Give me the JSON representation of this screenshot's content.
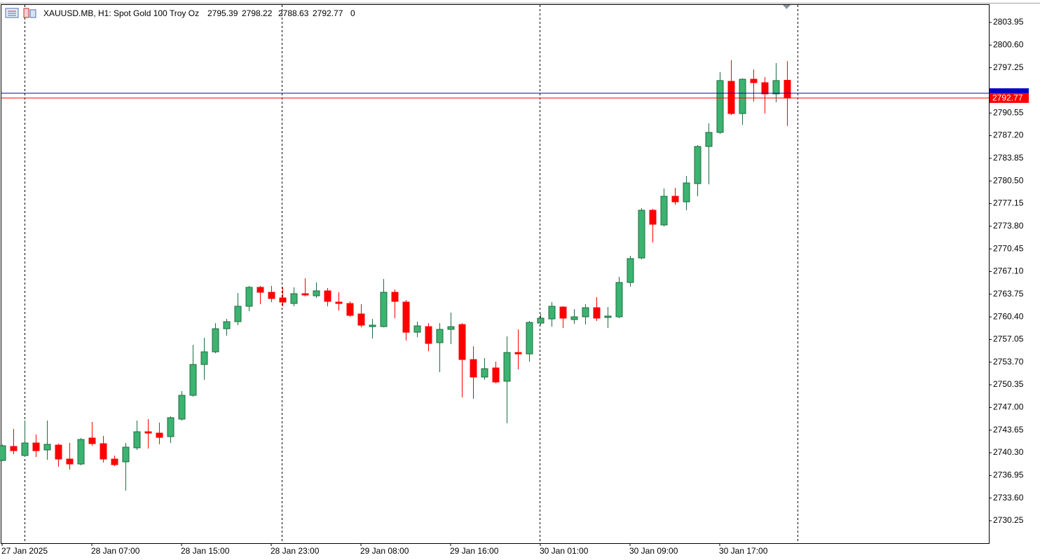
{
  "chart_data": {
    "type": "candlestick",
    "title": "XAUUSD.MB, H1:",
    "description": "Spot Gold 100 Troy Oz",
    "header_value": 0,
    "categories": [
      "27 Jan 2025",
      null,
      null,
      null,
      null,
      null,
      null,
      null,
      "28 Jan 07:00",
      null,
      null,
      null,
      null,
      null,
      null,
      null,
      "28 Jan 15:00",
      null,
      null,
      null,
      null,
      null,
      null,
      null,
      "28 Jan 23:00",
      null,
      null,
      null,
      null,
      null,
      null,
      null,
      "29 Jan 08:00",
      null,
      null,
      null,
      null,
      null,
      null,
      null,
      "29 Jan 16:00",
      null,
      null,
      null,
      null,
      null,
      null,
      null,
      "30 Jan 01:00",
      null,
      null,
      null,
      null,
      null,
      null,
      null,
      "30 Jan 09:00",
      null,
      null,
      null,
      null,
      null,
      null,
      null,
      "30 Jan 17:00",
      null,
      null,
      null,
      null,
      null,
      null
    ],
    "open": [
      2739.16,
      2741.24,
      2739.89,
      2741.75,
      2740.72,
      2741.44,
      2739.37,
      2738.64,
      2742.48,
      2741.65,
      2739.37,
      2738.96,
      2741.03,
      2743.41,
      2743.21,
      2742.69,
      2745.28,
      2748.8,
      2753.36,
      2755.23,
      2758.65,
      2759.69,
      2761.97,
      2764.77,
      2764.04,
      2763.21,
      2762.38,
      2763.83,
      2763.52,
      2764.25,
      2762.59,
      2762.38,
      2760.83,
      2758.96,
      2758.96,
      2764.04,
      2762.59,
      2758.13,
      2758.96,
      2756.58,
      2758.55,
      2759.27,
      2754.09,
      2751.5,
      2752.85,
      2750.88,
      2755.13,
      2754.92,
      2759.48,
      2760.1,
      2761.86,
      2760.0,
      2760.41,
      2761.76,
      2760.31,
      2760.41,
      2765.49,
      2769.12,
      2776.17,
      2773.99,
      2778.24,
      2777.41,
      2780.11,
      2785.6,
      2787.68,
      2795.24,
      2790.47,
      2795.55,
      2795.04,
      2793.38,
      2795.39
    ],
    "high": [
      2741.55,
      2743.83,
      2745.07,
      2743.0,
      2745.07,
      2741.65,
      2741.75,
      2742.48,
      2744.86,
      2742.79,
      2739.89,
      2741.75,
      2745.07,
      2745.28,
      2744.76,
      2745.69,
      2749.43,
      2756.27,
      2757.3,
      2759.48,
      2760.1,
      2763.94,
      2764.97,
      2764.97,
      2764.97,
      2764.77,
      2764.77,
      2766.11,
      2765.49,
      2764.66,
      2764.04,
      2762.69,
      2762.28,
      2760.1,
      2766.01,
      2764.46,
      2762.9,
      2759.69,
      2759.48,
      2759.48,
      2761.04,
      2759.48,
      2756.06,
      2754.3,
      2753.78,
      2757.51,
      2758.55,
      2759.79,
      2760.83,
      2762.59,
      2761.97,
      2761.55,
      2762.28,
      2763.32,
      2761.86,
      2766.32,
      2769.43,
      2776.48,
      2776.38,
      2779.38,
      2779.49,
      2781.25,
      2785.81,
      2789.02,
      2796.59,
      2798.35,
      2795.66,
      2797.0,
      2795.86,
      2797.94,
      2798.22
    ],
    "low": [
      2739.06,
      2740.1,
      2739.68,
      2739.68,
      2739.27,
      2738.23,
      2737.81,
      2738.44,
      2741.34,
      2738.85,
      2738.33,
      2734.71,
      2740.72,
      2740.93,
      2741.55,
      2741.75,
      2745.07,
      2748.6,
      2751.08,
      2755.02,
      2757.61,
      2759.17,
      2761.24,
      2762.28,
      2762.59,
      2761.97,
      2761.97,
      2763.42,
      2763.21,
      2761.97,
      2761.35,
      2760.41,
      2758.86,
      2757.2,
      2758.86,
      2760.21,
      2756.89,
      2757.41,
      2755.33,
      2752.22,
      2756.37,
      2748.49,
      2748.28,
      2751.08,
      2750.57,
      2744.66,
      2752.64,
      2753.78,
      2759.17,
      2758.96,
      2758.75,
      2759.38,
      2759.27,
      2759.79,
      2758.75,
      2760.21,
      2764.87,
      2768.91,
      2771.4,
      2773.79,
      2777.0,
      2776.17,
      2778.24,
      2780.0,
      2787.47,
      2790.27,
      2788.82,
      2792.24,
      2790.47,
      2792.13,
      2788.63
    ],
    "close": [
      2741.34,
      2740.61,
      2741.75,
      2740.61,
      2741.55,
      2739.37,
      2738.64,
      2742.27,
      2741.65,
      2739.37,
      2738.54,
      2741.13,
      2743.41,
      2743.21,
      2742.58,
      2745.49,
      2748.8,
      2753.36,
      2755.23,
      2758.65,
      2759.69,
      2761.97,
      2764.77,
      2764.04,
      2763.11,
      2762.59,
      2763.83,
      2763.63,
      2764.25,
      2762.69,
      2762.38,
      2760.62,
      2759.17,
      2759.17,
      2764.04,
      2762.69,
      2758.13,
      2759.07,
      2756.47,
      2758.55,
      2758.96,
      2754.09,
      2751.5,
      2752.74,
      2750.77,
      2755.13,
      2754.92,
      2759.58,
      2760.21,
      2761.97,
      2760.21,
      2760.41,
      2761.76,
      2760.21,
      2760.52,
      2765.49,
      2769.02,
      2776.17,
      2774.1,
      2778.24,
      2777.41,
      2780.21,
      2785.6,
      2787.68,
      2795.35,
      2790.47,
      2795.55,
      2795.04,
      2793.38,
      2795.35,
      2792.77
    ],
    "up_color": "#3cb371",
    "down_color": "#ff0000",
    "price_line": {
      "value": 2793.48,
      "color": "#0000c8"
    },
    "last_price_color": "#ff0000",
    "ylim": [
      2726.93,
      2806.54
    ],
    "yticks": [
      2803.95,
      {
        "value": 2800.6,
        "label": "2800.60"
      },
      2797.25,
      2790.55,
      {
        "value": 2787.2,
        "label": "2787.20"
      },
      2783.85,
      {
        "value": 2780.5,
        "label": "2780.50"
      },
      2777.15,
      {
        "value": 2773.8,
        "label": "2773.80"
      },
      2770.45,
      {
        "value": 2767.1,
        "label": "2767.10"
      },
      2763.75,
      {
        "value": 2760.4,
        "label": "2760.40"
      },
      2757.05,
      {
        "value": 2753.7,
        "label": "2753.70"
      },
      2750.35,
      {
        "value": 2747,
        "label": "2747.00"
      },
      2743.65,
      {
        "value": 2740.3,
        "label": "2740.30"
      },
      2736.95,
      {
        "value": 2733.6,
        "label": "2733.60"
      },
      2730.25
    ],
    "grid": false
  }
}
